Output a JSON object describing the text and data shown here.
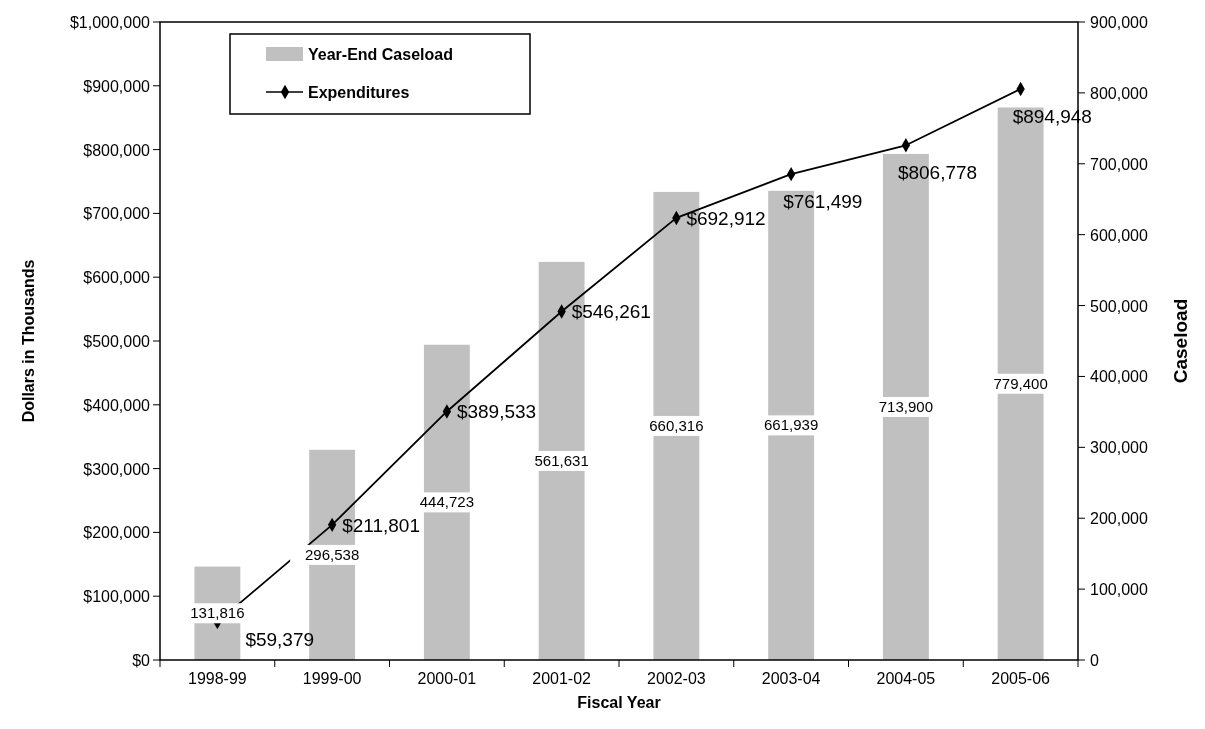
{
  "chart_data": {
    "type": "bar",
    "xlabel": "Fiscal Year",
    "ylabel": "Dollars in Thousands",
    "y2label": "Caseload",
    "categories": [
      "1998-99",
      "1999-00",
      "2000-01",
      "2001-02",
      "2002-03",
      "2003-04",
      "2004-05",
      "2005-06"
    ],
    "series": [
      {
        "name": "Year-End Caseload",
        "axis": "y2",
        "color": "#c0c0c0",
        "values": [
          131816,
          296538,
          444723,
          561631,
          660316,
          661939,
          713900,
          779400
        ],
        "value_labels": [
          "131,816",
          "296,538",
          "444,723",
          "561,631",
          "660,316",
          "661,939",
          "713,900",
          "779,400"
        ]
      },
      {
        "name": "Expenditures",
        "type": "line",
        "axis": "y",
        "color": "#000000",
        "values": [
          59379,
          211801,
          389533,
          546261,
          692912,
          761499,
          806778,
          894948
        ],
        "value_labels": [
          "$59,379",
          "$211,801",
          "$389,533",
          "$546,261",
          "$692,912",
          "$761,499",
          "$806,778",
          "$894,948"
        ]
      }
    ],
    "ylim": [
      0,
      1000000
    ],
    "yticks": [
      {
        "value": 0,
        "label": "$0"
      },
      {
        "value": 100000,
        "label": "$100,000"
      },
      {
        "value": 200000,
        "label": "$200,000"
      },
      {
        "value": 300000,
        "label": "$300,000"
      },
      {
        "value": 400000,
        "label": "$400,000"
      },
      {
        "value": 500000,
        "label": "$500,000"
      },
      {
        "value": 600000,
        "label": "$600,000"
      },
      {
        "value": 700000,
        "label": "$700,000"
      },
      {
        "value": 800000,
        "label": "$800,000"
      },
      {
        "value": 900000,
        "label": "$900,000"
      },
      {
        "value": 1000000,
        "label": "$1,000,000"
      }
    ],
    "y2lim": [
      0,
      900000
    ],
    "y2ticks": [
      0,
      {
        "value": 100000,
        "label": "100,000"
      },
      {
        "value": 200000,
        "label": "200,000"
      },
      {
        "value": 300000,
        "label": "300,000"
      },
      {
        "value": 400000,
        "label": "400,000"
      },
      {
        "value": 500000,
        "label": "500,000"
      },
      {
        "value": 600000,
        "label": "600,000"
      },
      {
        "value": 700000,
        "label": "700,000"
      },
      {
        "value": 800000,
        "label": "800,000"
      },
      {
        "value": 900000,
        "label": "900,000"
      }
    ],
    "legend": "top left",
    "marker": "diamond"
  }
}
